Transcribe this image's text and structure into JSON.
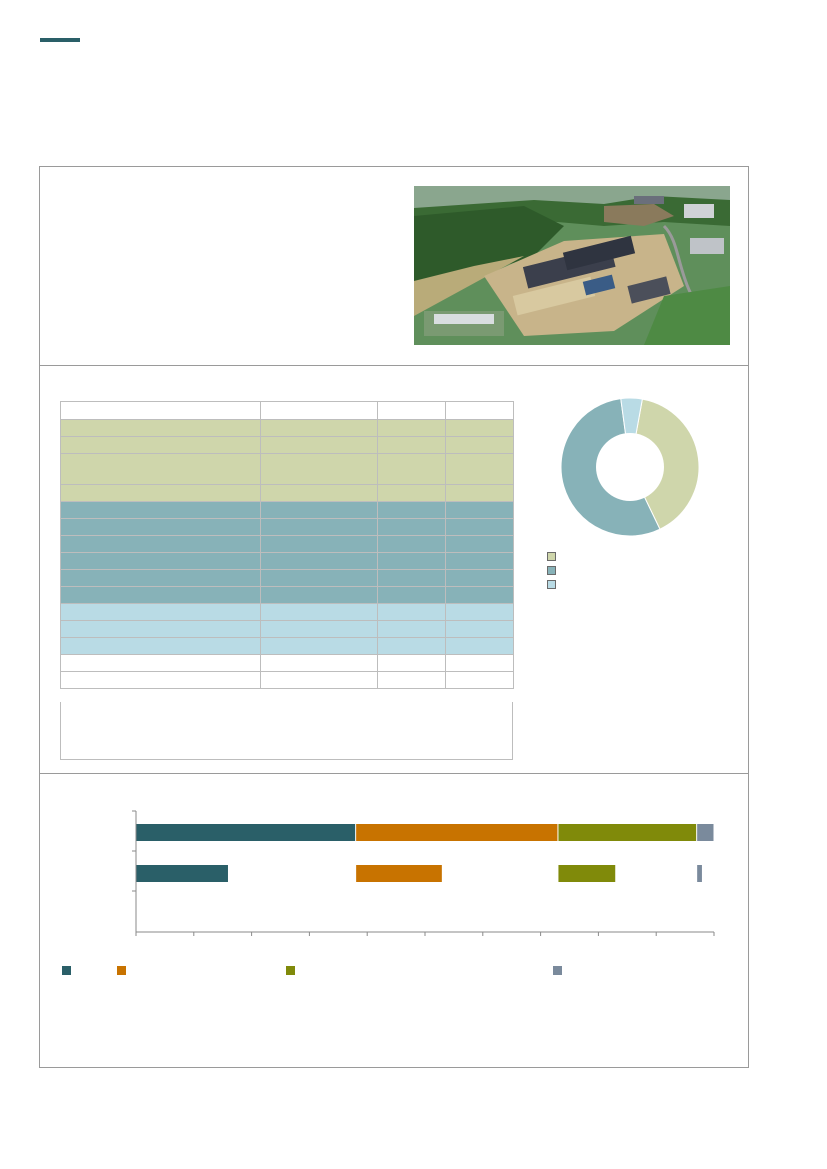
{
  "header": {
    "accent_color": "#2a5f68"
  },
  "photo": {
    "description_icon": "aerial-construction-photo"
  },
  "table": {
    "rows": [
      {
        "group": "header",
        "height": 18
      },
      {
        "group": "green",
        "height": 17
      },
      {
        "group": "green",
        "height": 17
      },
      {
        "group": "green",
        "height": 31
      },
      {
        "group": "green",
        "height": 17
      },
      {
        "group": "teal",
        "height": 17
      },
      {
        "group": "teal",
        "height": 17
      },
      {
        "group": "teal",
        "height": 17
      },
      {
        "group": "teal",
        "height": 17
      },
      {
        "group": "teal",
        "height": 17
      },
      {
        "group": "teal",
        "height": 17
      },
      {
        "group": "blue",
        "height": 17
      },
      {
        "group": "blue",
        "height": 17
      },
      {
        "group": "blue",
        "height": 17
      },
      {
        "group": "white",
        "height": 17
      },
      {
        "group": "white",
        "height": 17
      }
    ],
    "colors": {
      "green": "#cfd6ab",
      "teal": "#87b2b8",
      "blue": "#b9dbe5"
    }
  },
  "chart_data": [
    {
      "type": "pie",
      "donut": true,
      "values": [
        40,
        55,
        5
      ],
      "colors": [
        "#cfd6ab",
        "#87b2b8",
        "#b9dbe5"
      ]
    },
    {
      "type": "bar",
      "orientation": "horizontal",
      "stacked": true,
      "series_colors": [
        "#2a5f68",
        "#c87300",
        "#808a0a",
        "#7a8a9c"
      ],
      "bars": [
        {
          "values": [
            38,
            35,
            24,
            3
          ]
        },
        {
          "values": [
            16,
            15,
            10,
            1
          ]
        }
      ],
      "xlim": [
        0,
        100
      ],
      "grid": false
    }
  ]
}
